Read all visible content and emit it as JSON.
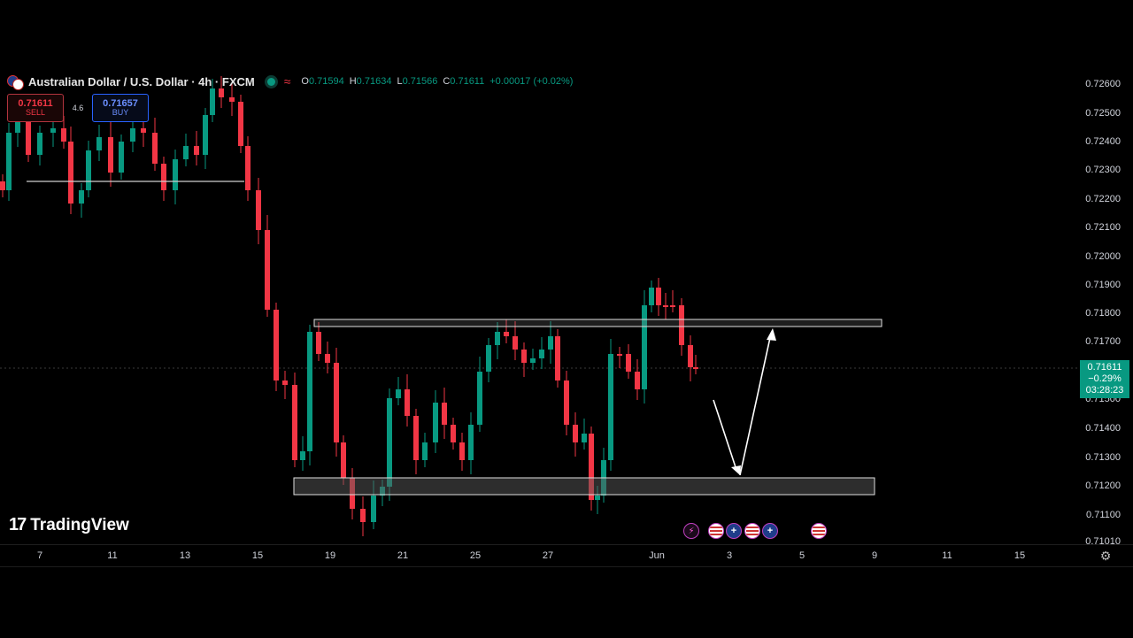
{
  "header": {
    "symbol_title": "Australian Dollar / U.S. Dollar · 4h · FXCM",
    "ohlc": {
      "o_key": "O",
      "o": "0.71594",
      "h_key": "H",
      "h": "0.71634",
      "l_key": "L",
      "l": "0.71566",
      "c_key": "C",
      "c": "0.71611",
      "change": "+0.00017 (+0.02%)"
    },
    "sell": {
      "price": "0.71611",
      "label": "SELL"
    },
    "buy": {
      "price": "0.71657",
      "label": "BUY"
    },
    "spread": "4.6"
  },
  "logo": {
    "mark": "17",
    "name": "TradingView"
  },
  "price_axis": {
    "ticks": [
      "0.72600",
      "0.72500",
      "0.72400",
      "0.72300",
      "0.72200",
      "0.72100",
      "0.72000",
      "0.71900",
      "0.71800",
      "0.71700",
      "0.71600",
      "0.71500",
      "0.71400",
      "0.71300",
      "0.71200",
      "0.71100",
      "0.71010"
    ],
    "current_price": "0.71611",
    "current_change": "−0.29%",
    "countdown": "03:28:23"
  },
  "time_axis": {
    "ticks": [
      "7",
      "11",
      "13",
      "15",
      "19",
      "21",
      "25",
      "27",
      "Jun",
      "3",
      "5",
      "9",
      "11",
      "15"
    ]
  },
  "events": [
    {
      "icon": "flash-icon"
    },
    {
      "icon": "us-flag-icon"
    },
    {
      "icon": "au-flag-icon"
    },
    {
      "icon": "us-flag-icon"
    },
    {
      "icon": "au-flag-icon"
    },
    {
      "icon": "us-flag-icon"
    }
  ],
  "colors": {
    "up": "#089981",
    "down": "#f23645",
    "background": "#000000",
    "drawing": "#ffffff"
  },
  "chart_data": {
    "type": "candlestick",
    "symbol": "AUD/USD",
    "timeframe": "4h",
    "ylim": [
      0.7101,
      0.7266
    ],
    "last_price": 0.71611,
    "annotations": {
      "resistance_zone": [
        0.71765,
        0.7179
      ],
      "support_zone": [
        0.7117,
        0.7123
      ],
      "early_level": 0.72255,
      "arrow_down_end": 0.71235,
      "arrow_up_end": 0.7176
    }
  }
}
